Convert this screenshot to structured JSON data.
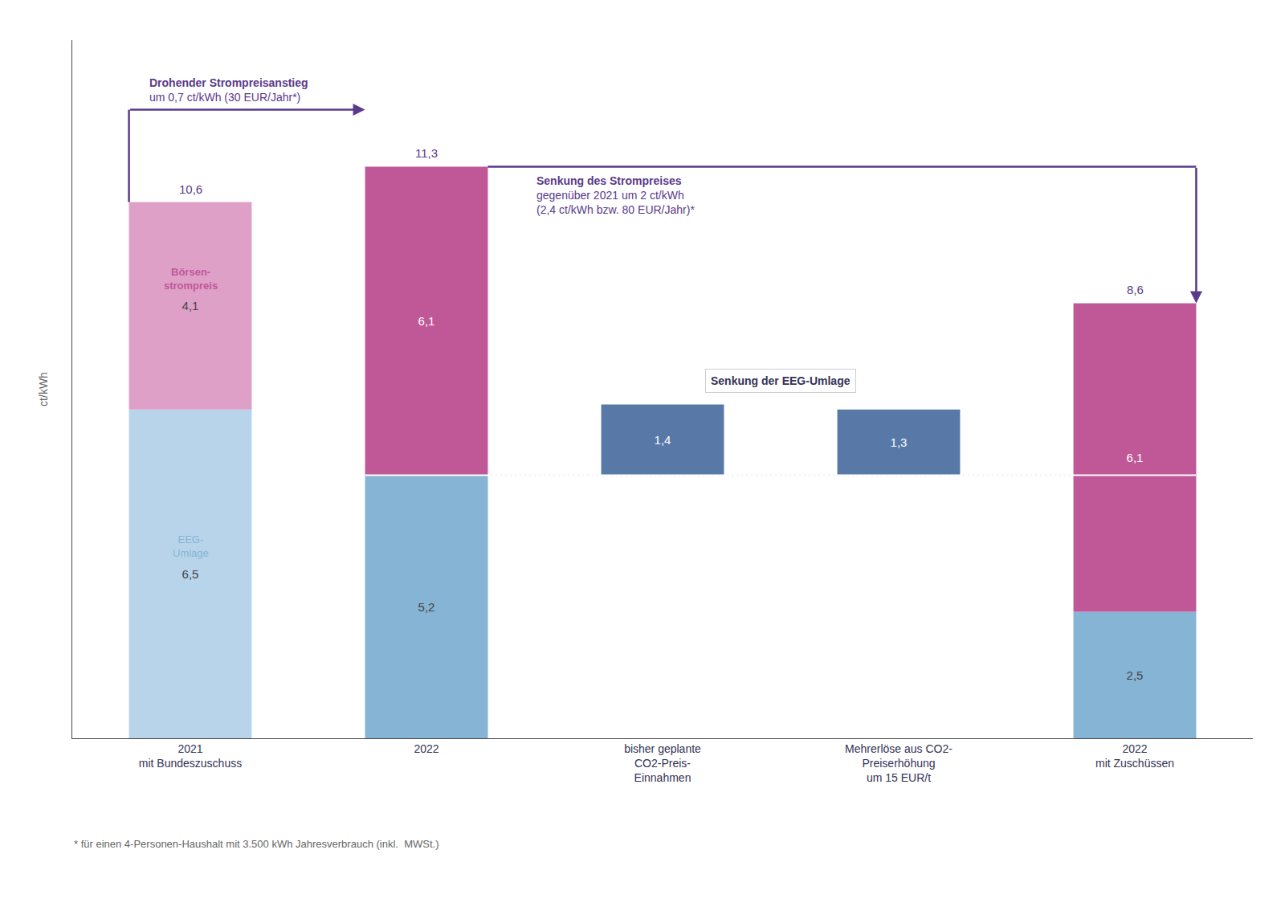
{
  "chart_data": {
    "type": "bar",
    "stacked": true,
    "categories": [
      "2021\nmit Bundeszuschuss",
      "2022",
      "bisher geplante\nCO2-Preis-\nEinnahmen",
      "Mehrerlöse aus CO2-\nPreiserhöhung\num 15 EUR/t",
      "2022\nmit Zuschüssen"
    ],
    "bases": [
      0,
      0,
      5.2,
      5.2,
      0
    ],
    "series": [
      {
        "name": "EEG-\nUmlage",
        "color": "#85b4d4",
        "colors": [
          "#b8d4ea",
          "#85b4d4",
          "#5878a8",
          "#5878a8",
          "#85b4d4"
        ],
        "values": [
          6.5,
          5.2,
          1.4,
          1.3,
          2.5
        ],
        "value_labels": [
          "6,5",
          "5,2",
          "1,4",
          "1,3",
          "2,5"
        ]
      },
      {
        "name": "Börsen-\nstrompreis",
        "color": "#c05898",
        "colors": [
          "#dfa0c8",
          "#c05898",
          null,
          null,
          "#c05898"
        ],
        "values": [
          4.1,
          6.1,
          null,
          null,
          6.1
        ],
        "value_labels": [
          "4,1",
          "6,1",
          null,
          null,
          "6,1"
        ]
      }
    ],
    "totals": [
      10.6,
      11.3,
      null,
      null,
      8.6
    ],
    "total_labels": [
      "10,6",
      "11,3",
      null,
      null,
      "8,6"
    ],
    "reference_line": 5.2,
    "ylim": [
      0,
      13.8
    ],
    "yticks": [],
    "y_label": "ct/kWh",
    "grid": false,
    "data_labels": true,
    "tick_labels": "x",
    "color": "#5a3a8a",
    "annotations": [
      "Drohender Strompreisanstieg\num 0,7 ct/kWh (30 EUR/Jahr*)",
      "Senkung des Strompreises\ngegenüber 2021 um 2 ct/kWh\n(2,4 ct/kWh bzw. 80 EUR/Jahr)*",
      "Senkung der EEG-Umlage"
    ],
    "footnote": "* für einen 4-Personen-Haushalt mit 3.500 kWh Jahresverbrauch (inkl.  MWSt.)"
  }
}
